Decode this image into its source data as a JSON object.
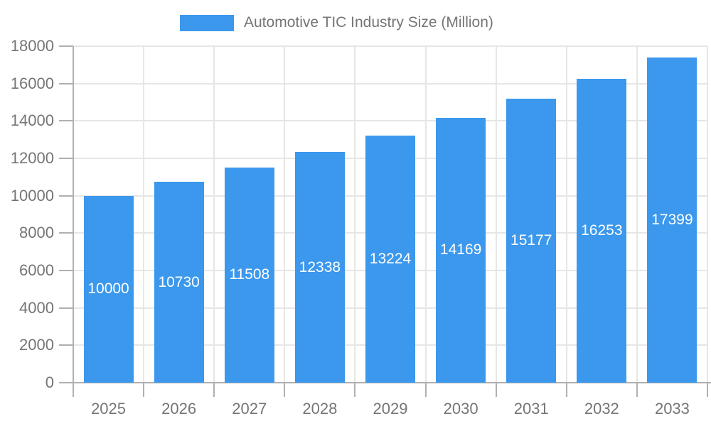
{
  "colors": {
    "bar": "#3B98ED",
    "axis_label": "#757575",
    "legend_label": "#757575",
    "grid_line": "#E6E6E6",
    "axis_line": "#B0B0B0",
    "bar_label": "#FFFFFF",
    "background": "#FFFFFF"
  },
  "legend": {
    "label": "Automotive TIC Industry Size (Million)"
  },
  "chart_data": {
    "type": "bar",
    "title": "Automotive TIC Industry Size (Million)",
    "categories": [
      "2025",
      "2026",
      "2027",
      "2028",
      "2029",
      "2030",
      "2031",
      "2032",
      "2033"
    ],
    "series": [
      {
        "name": "Automotive TIC Industry Size (Million)",
        "values": [
          10000,
          10730,
          11508,
          12338,
          13224,
          14169,
          15177,
          16253,
          17399
        ]
      }
    ],
    "xlabel": "",
    "ylabel": "",
    "ylim": [
      0,
      18000
    ],
    "ytick_step": 2000,
    "ytick_labels": [
      "0",
      "2000",
      "4000",
      "6000",
      "8000",
      "10000",
      "12000",
      "14000",
      "16000",
      "18000"
    ],
    "grid": true,
    "legend_position": "top",
    "bar_labels_visible": true,
    "bar_label_position": "center"
  }
}
